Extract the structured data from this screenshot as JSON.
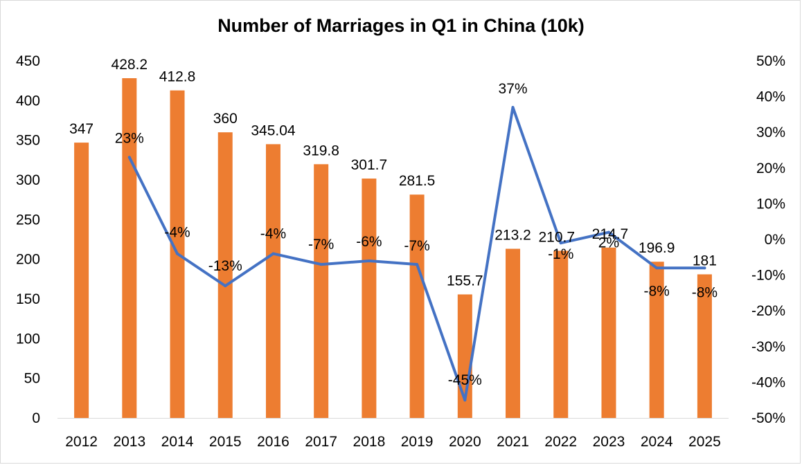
{
  "chart_data": {
    "type": "bar",
    "title": "Number of Marriages in Q1 in China (10k)",
    "categories": [
      "2012",
      "2013",
      "2014",
      "2015",
      "2016",
      "2017",
      "2018",
      "2019",
      "2020",
      "2021",
      "2022",
      "2023",
      "2024",
      "2025"
    ],
    "series": [
      {
        "type": "bar",
        "axis": "left",
        "values": [
          347,
          428.2,
          412.8,
          360,
          345.04,
          319.8,
          301.7,
          281.5,
          155.7,
          213.2,
          210.7,
          214.7,
          196.9,
          181
        ],
        "labels": [
          "347",
          "428.2",
          "412.8",
          "360",
          "345.04",
          "319.8",
          "301.7",
          "281.5",
          "155.7",
          "213.2",
          "210.7",
          "214.7",
          "196.9",
          "181"
        ]
      },
      {
        "type": "line",
        "axis": "right",
        "values": [
          null,
          0.23,
          -0.04,
          -0.13,
          -0.04,
          -0.07,
          -0.06,
          -0.07,
          -0.45,
          0.37,
          -0.01,
          0.02,
          -0.08,
          -0.08
        ],
        "labels": [
          "",
          "23%",
          "-4%",
          "-13%",
          "-4%",
          "-7%",
          "-6%",
          "-7%",
          "-45%",
          "37%",
          "-1%",
          "2%",
          "-8%",
          "-8%"
        ]
      }
    ],
    "left_axis": {
      "ylim": [
        0,
        450
      ],
      "ticks": [
        0,
        50,
        100,
        150,
        200,
        250,
        300,
        350,
        400,
        450
      ],
      "tick_labels": [
        "0",
        "50",
        "100",
        "150",
        "200",
        "250",
        "300",
        "350",
        "400",
        "450"
      ]
    },
    "right_axis": {
      "ylim": [
        -0.5,
        0.5
      ],
      "ticks": [
        -0.5,
        -0.4,
        -0.3,
        -0.2,
        -0.1,
        0,
        0.1,
        0.2,
        0.3,
        0.4,
        0.5
      ],
      "tick_labels": [
        "-50%",
        "-40%",
        "-30%",
        "-20%",
        "-10%",
        "0%",
        "10%",
        "20%",
        "30%",
        "40%",
        "50%"
      ]
    },
    "grid": false,
    "legend": "none",
    "colors": {
      "bar": "#ED7D31",
      "line": "#4472C4"
    }
  }
}
